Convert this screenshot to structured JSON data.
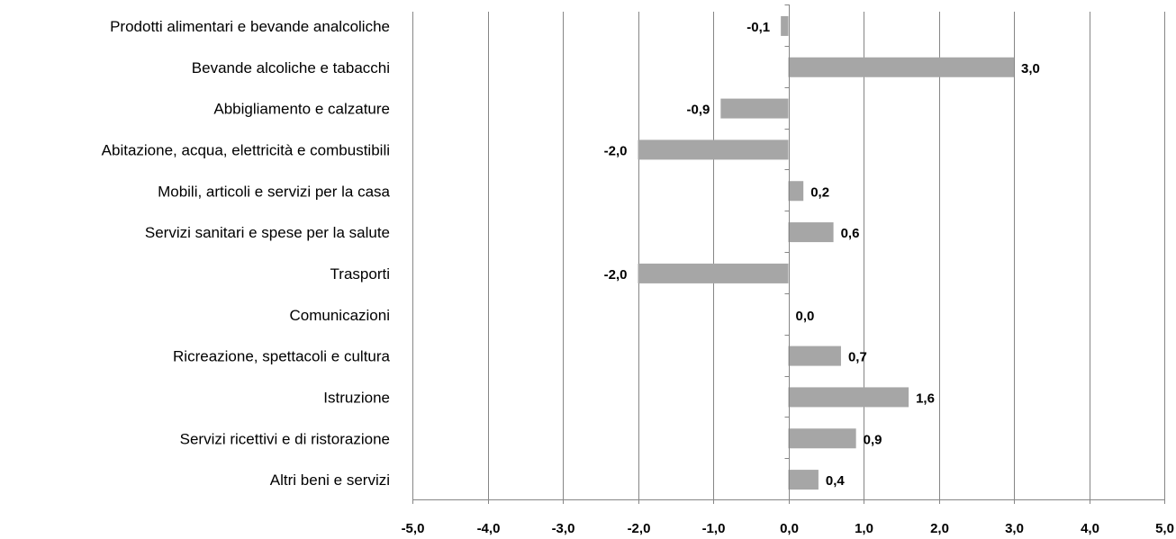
{
  "chart_data": {
    "type": "bar",
    "orientation": "horizontal",
    "categories": [
      "Prodotti alimentari e bevande analcoliche",
      "Bevande alcoliche e tabacchi",
      "Abbigliamento e calzature",
      "Abitazione, acqua, elettricità e combustibili",
      "Mobili, articoli e servizi per la casa",
      "Servizi sanitari e spese per la salute",
      "Trasporti",
      "Comunicazioni",
      "Ricreazione, spettacoli e cultura",
      "Istruzione",
      "Servizi ricettivi e di ristorazione",
      "Altri beni e servizi"
    ],
    "values": [
      -0.1,
      3.0,
      -0.9,
      -2.0,
      0.2,
      0.6,
      -2.0,
      0.0,
      0.7,
      1.6,
      0.9,
      0.4
    ],
    "value_labels": [
      "-0,1",
      "3,0",
      "-0,9",
      "-2,0",
      "0,2",
      "0,6",
      "-2,0",
      "0,0",
      "0,7",
      "1,6",
      "0,9",
      "0,4"
    ],
    "xlim": [
      -5,
      5
    ],
    "x_ticks": [
      -5,
      -4,
      -3,
      -2,
      -1,
      0,
      1,
      2,
      3,
      4,
      5
    ],
    "x_tick_labels": [
      "-5,0",
      "-4,0",
      "-3,0",
      "-2,0",
      "-1,0",
      "0,0",
      "1,0",
      "2,0",
      "3,0",
      "4,0",
      "5,0"
    ],
    "grid": true,
    "legend": "none",
    "title": "",
    "xlabel": "",
    "ylabel": "",
    "bar_color": "#a6a6a6",
    "grid_color": "#868686"
  }
}
